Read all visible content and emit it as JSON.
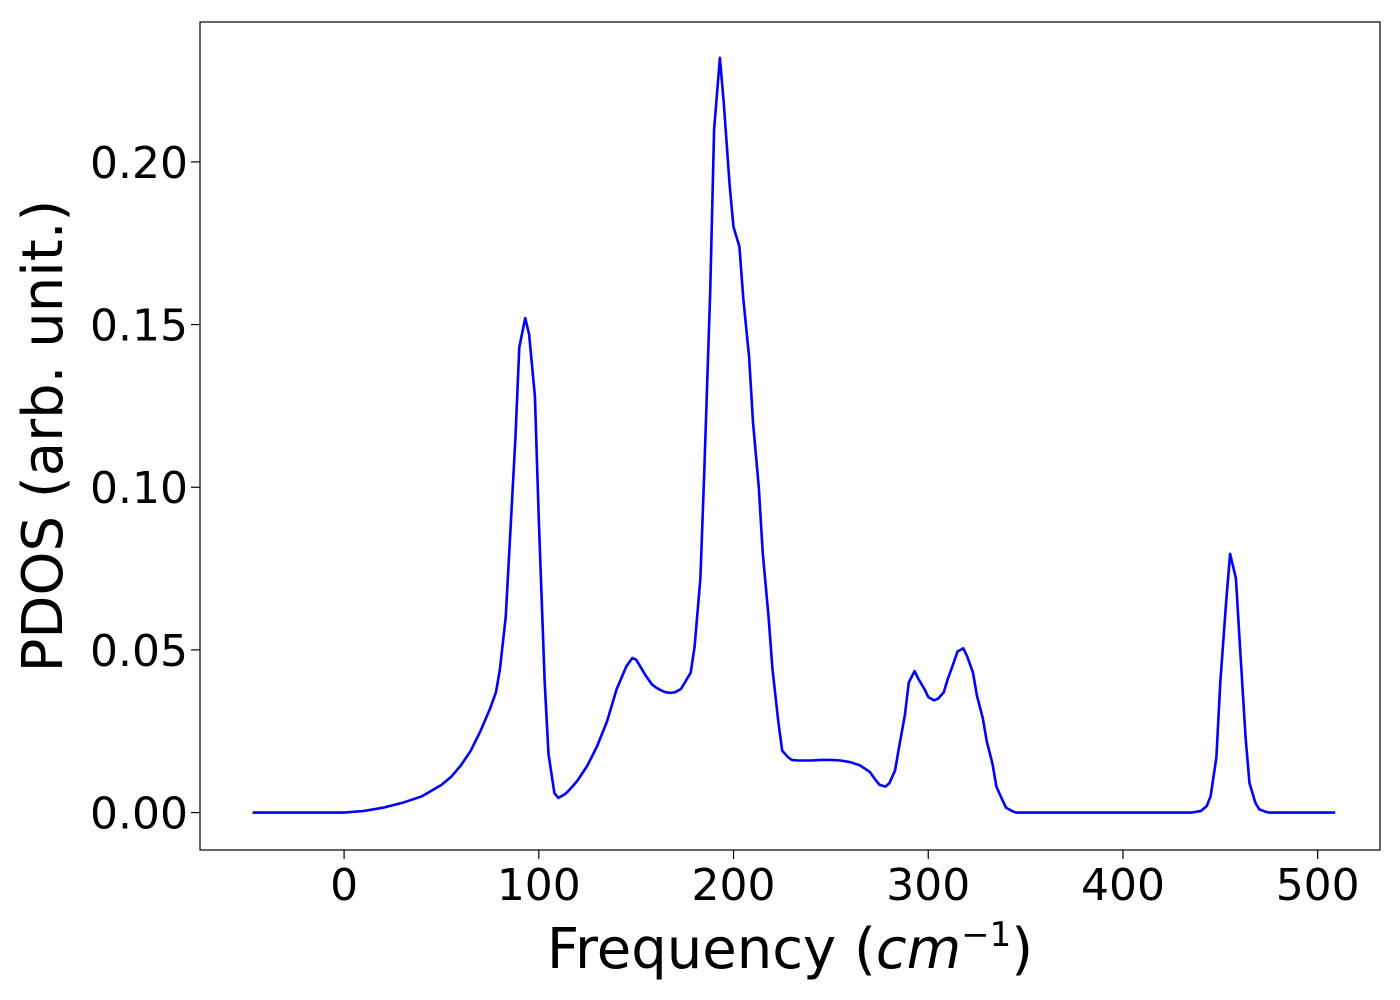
{
  "chart_data": {
    "type": "line",
    "title": "",
    "xlabel_main": "Frequency (",
    "xlabel_unit": "cm",
    "xlabel_exp": "−1",
    "xlabel_close": ")",
    "ylabel": "PDOS (arb. unit.)",
    "xlim": [
      -74,
      532
    ],
    "ylim": [
      -0.0115,
      0.243
    ],
    "xticks": [
      0,
      100,
      200,
      300,
      400,
      500
    ],
    "xtick_labels": [
      "0",
      "100",
      "200",
      "300",
      "400",
      "500"
    ],
    "yticks": [
      0.0,
      0.05,
      0.1,
      0.15,
      0.2
    ],
    "ytick_labels": [
      "0.00",
      "0.05",
      "0.10",
      "0.15",
      "0.20"
    ],
    "grid": false,
    "series": [
      {
        "color": "#0000ff",
        "x": [
          -47,
          -20,
          0,
          10,
          20,
          30,
          40,
          50,
          55,
          60,
          65,
          70,
          75,
          78,
          80,
          83,
          85,
          88,
          90,
          93,
          95,
          98,
          100,
          103,
          105,
          108,
          110,
          113,
          115,
          118,
          120,
          125,
          130,
          135,
          140,
          145,
          148,
          150,
          152,
          155,
          158,
          160,
          163,
          165,
          168,
          170,
          173,
          175,
          178,
          180,
          183,
          185,
          188,
          190,
          193,
          195,
          198,
          200,
          203,
          205,
          208,
          210,
          213,
          215,
          218,
          220,
          223,
          225,
          228,
          230,
          233,
          235,
          240,
          245,
          250,
          255,
          260,
          265,
          270,
          273,
          275,
          278,
          280,
          283,
          285,
          288,
          290,
          293,
          295,
          298,
          300,
          303,
          305,
          308,
          310,
          313,
          315,
          318,
          320,
          323,
          325,
          328,
          330,
          333,
          335,
          338,
          340,
          343,
          345,
          350,
          360,
          380,
          400,
          420,
          435,
          440,
          443,
          445,
          448,
          450,
          453,
          455,
          458,
          460,
          463,
          465,
          468,
          470,
          473,
          475,
          480,
          490,
          509
        ],
        "y": [
          0.0,
          0.0,
          0.0,
          0.0005,
          0.0015,
          0.003,
          0.005,
          0.0085,
          0.011,
          0.0145,
          0.019,
          0.025,
          0.032,
          0.037,
          0.044,
          0.06,
          0.082,
          0.115,
          0.143,
          0.152,
          0.147,
          0.128,
          0.09,
          0.04,
          0.018,
          0.006,
          0.0045,
          0.0055,
          0.0065,
          0.0085,
          0.01,
          0.0145,
          0.0205,
          0.028,
          0.038,
          0.045,
          0.0475,
          0.047,
          0.045,
          0.042,
          0.0395,
          0.0385,
          0.0375,
          0.037,
          0.0368,
          0.037,
          0.038,
          0.04,
          0.043,
          0.051,
          0.072,
          0.105,
          0.16,
          0.21,
          0.232,
          0.218,
          0.193,
          0.18,
          0.174,
          0.158,
          0.14,
          0.12,
          0.1,
          0.08,
          0.06,
          0.044,
          0.028,
          0.019,
          0.017,
          0.0162,
          0.016,
          0.016,
          0.016,
          0.0162,
          0.0162,
          0.016,
          0.0155,
          0.0145,
          0.0125,
          0.01,
          0.0085,
          0.008,
          0.009,
          0.013,
          0.02,
          0.03,
          0.04,
          0.0435,
          0.041,
          0.038,
          0.0355,
          0.0345,
          0.035,
          0.037,
          0.041,
          0.046,
          0.0495,
          0.0505,
          0.048,
          0.043,
          0.036,
          0.029,
          0.022,
          0.015,
          0.008,
          0.004,
          0.0015,
          0.0005,
          0.0,
          0.0,
          0.0,
          0.0,
          0.0,
          0.0,
          0.0,
          0.0005,
          0.002,
          0.005,
          0.017,
          0.04,
          0.065,
          0.0795,
          0.072,
          0.052,
          0.023,
          0.009,
          0.003,
          0.001,
          0.0003,
          0.0,
          0.0,
          0.0,
          0.0
        ]
      }
    ]
  }
}
